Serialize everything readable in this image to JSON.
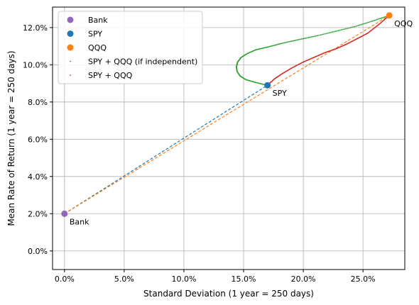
{
  "chart_data": {
    "type": "scatter",
    "xlabel": "Standard Deviation (1 year = 250 days)",
    "ylabel": "Mean Rate of Return (1 year = 250 days)",
    "xlim": [
      -0.01,
      0.285
    ],
    "ylim": [
      -0.01,
      0.131
    ],
    "x_ticks": [
      0.0,
      0.05,
      0.1,
      0.15,
      0.2,
      0.25
    ],
    "x_tick_labels": [
      "0.0%",
      "5.0%",
      "10.0%",
      "15.0%",
      "20.0%",
      "25.0%"
    ],
    "y_ticks": [
      0.0,
      0.02,
      0.04,
      0.06,
      0.08,
      0.1,
      0.12
    ],
    "y_tick_labels": [
      "0.0%",
      "2.0%",
      "4.0%",
      "6.0%",
      "8.0%",
      "10.0%",
      "12.0%"
    ],
    "grid": true,
    "legend_position": "top-left",
    "colors": {
      "bank": "#9467bd",
      "spy": "#1f77b4",
      "qqq": "#ff7f0e",
      "independent": "#2ca02c",
      "combo": "#d62728"
    },
    "assets": [
      {
        "key": "bank",
        "name": "Bank",
        "label": "Bank",
        "x": 0.0,
        "y": 0.02
      },
      {
        "key": "spy",
        "name": "SPY",
        "label": "SPY",
        "x": 0.17,
        "y": 0.089
      },
      {
        "key": "qqq",
        "name": "QQQ",
        "label": "QQQ",
        "x": 0.272,
        "y": 0.1265
      }
    ],
    "series": [
      {
        "name": "SPY + QQQ (if independent)",
        "style": "dots",
        "color": "independent",
        "x": [
          0.17,
          0.16,
          0.152,
          0.147,
          0.1445,
          0.144,
          0.145,
          0.148,
          0.153,
          0.16,
          0.17,
          0.182,
          0.196,
          0.211,
          0.227,
          0.243,
          0.258,
          0.272
        ],
        "y": [
          0.089,
          0.0905,
          0.092,
          0.094,
          0.0965,
          0.099,
          0.1015,
          0.104,
          0.106,
          0.108,
          0.1095,
          0.1115,
          0.1135,
          0.1155,
          0.118,
          0.1205,
          0.1235,
          0.1265
        ]
      },
      {
        "name": "SPY + QQQ",
        "style": "dots",
        "color": "combo",
        "x": [
          0.17,
          0.176,
          0.183,
          0.191,
          0.2,
          0.209,
          0.218,
          0.227,
          0.236,
          0.245,
          0.254,
          0.263,
          0.272
        ],
        "y": [
          0.089,
          0.0925,
          0.0955,
          0.0985,
          0.1015,
          0.104,
          0.1065,
          0.1085,
          0.111,
          0.114,
          0.117,
          0.1215,
          0.1265
        ]
      }
    ],
    "lines": [
      {
        "from": "bank",
        "to": "spy",
        "color": "spy",
        "style": "dashed"
      },
      {
        "from": "bank",
        "to": "qqq",
        "color": "qqq",
        "style": "dashed"
      }
    ]
  }
}
